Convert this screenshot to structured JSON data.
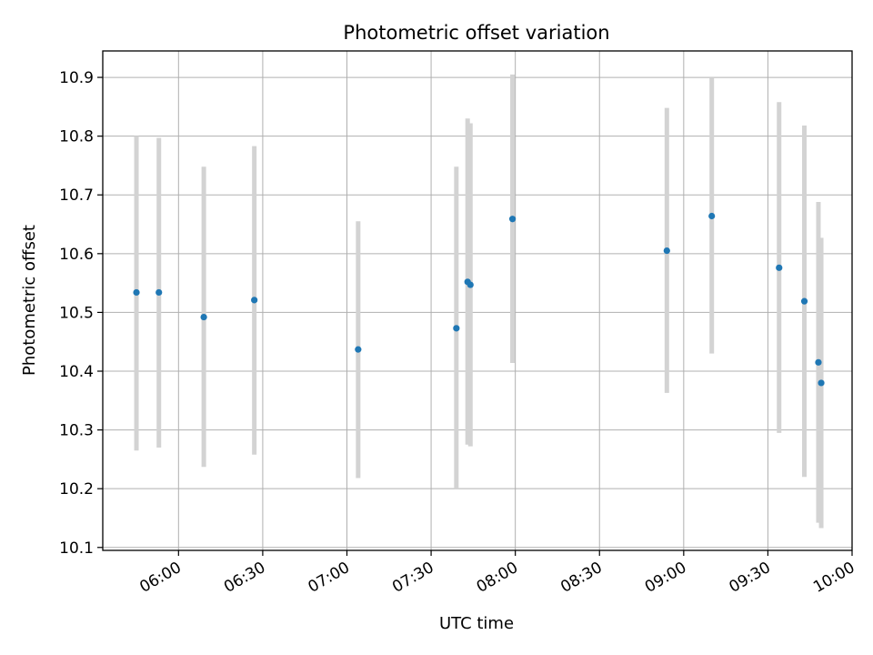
{
  "chart_data": {
    "type": "scatter",
    "title": "Photometric offset variation",
    "xlabel": "UTC time",
    "ylabel": "Photometric offset",
    "xlim": [
      "05:33",
      "10:00"
    ],
    "ylim": [
      10.095,
      10.945
    ],
    "x_ticks": [
      {
        "value": "06:00",
        "label": "06:00"
      },
      {
        "value": "06:30",
        "label": "06:30"
      },
      {
        "value": "07:00",
        "label": "07:00"
      },
      {
        "value": "07:30",
        "label": "07:30"
      },
      {
        "value": "08:00",
        "label": "08:00"
      },
      {
        "value": "08:30",
        "label": "08:30"
      },
      {
        "value": "09:00",
        "label": "09:00"
      },
      {
        "value": "09:30",
        "label": "09:30"
      },
      {
        "value": "10:00",
        "label": "10:00"
      }
    ],
    "y_ticks": [
      {
        "value": 10.1,
        "label": "10.1"
      },
      {
        "value": 10.2,
        "label": "10.2"
      },
      {
        "value": 10.3,
        "label": "10.3"
      },
      {
        "value": 10.4,
        "label": "10.4"
      },
      {
        "value": 10.5,
        "label": "10.5"
      },
      {
        "value": 10.6,
        "label": "10.6"
      },
      {
        "value": 10.7,
        "label": "10.7"
      },
      {
        "value": 10.8,
        "label": "10.8"
      },
      {
        "value": 10.9,
        "label": "10.9"
      }
    ],
    "grid": true,
    "point_color": "#1f77b4",
    "errorbar_color": "#d3d3d3",
    "points": [
      {
        "x": "05:45",
        "y": 10.534,
        "low": 10.265,
        "high": 10.8
      },
      {
        "x": "05:53",
        "y": 10.534,
        "low": 10.27,
        "high": 10.797
      },
      {
        "x": "06:09",
        "y": 10.492,
        "low": 10.237,
        "high": 10.748
      },
      {
        "x": "06:27",
        "y": 10.521,
        "low": 10.258,
        "high": 10.783
      },
      {
        "x": "07:04",
        "y": 10.437,
        "low": 10.218,
        "high": 10.655
      },
      {
        "x": "07:39",
        "y": 10.473,
        "low": 10.2,
        "high": 10.748
      },
      {
        "x": "07:43",
        "y": 10.552,
        "low": 10.275,
        "high": 10.83
      },
      {
        "x": "07:44",
        "y": 10.547,
        "low": 10.272,
        "high": 10.822
      },
      {
        "x": "07:59",
        "y": 10.659,
        "low": 10.414,
        "high": 10.905
      },
      {
        "x": "08:54",
        "y": 10.605,
        "low": 10.363,
        "high": 10.848
      },
      {
        "x": "09:10",
        "y": 10.664,
        "low": 10.43,
        "high": 10.9
      },
      {
        "x": "09:34",
        "y": 10.576,
        "low": 10.295,
        "high": 10.858
      },
      {
        "x": "09:43",
        "y": 10.519,
        "low": 10.22,
        "high": 10.818
      },
      {
        "x": "09:48",
        "y": 10.415,
        "low": 10.142,
        "high": 10.688
      },
      {
        "x": "09:49",
        "y": 10.38,
        "low": 10.133,
        "high": 10.627
      }
    ]
  }
}
